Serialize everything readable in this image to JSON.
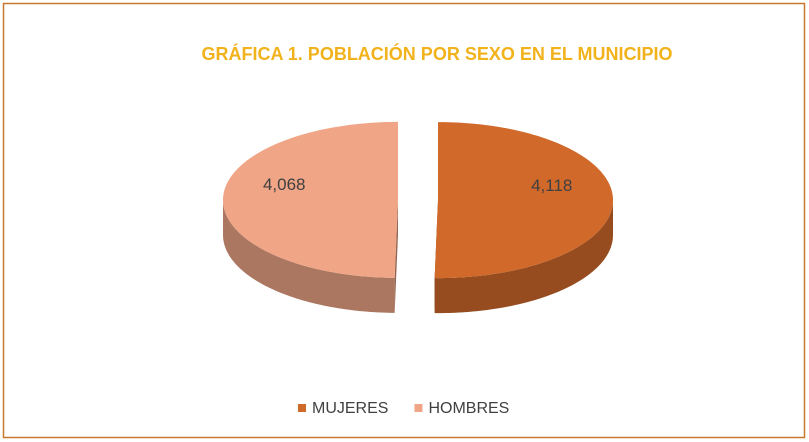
{
  "chart_data": {
    "type": "pie",
    "title": "GRÁFICA 1. POBLACIÓN POR SEXO EN EL MUNICIPIO",
    "categories": [
      "MUJERES",
      "HOMBRES"
    ],
    "values": [
      4118,
      4068
    ],
    "value_labels": [
      "4,118",
      "4,068"
    ],
    "colors": [
      "#d0692a",
      "#efa586"
    ],
    "legend": "bottom"
  }
}
